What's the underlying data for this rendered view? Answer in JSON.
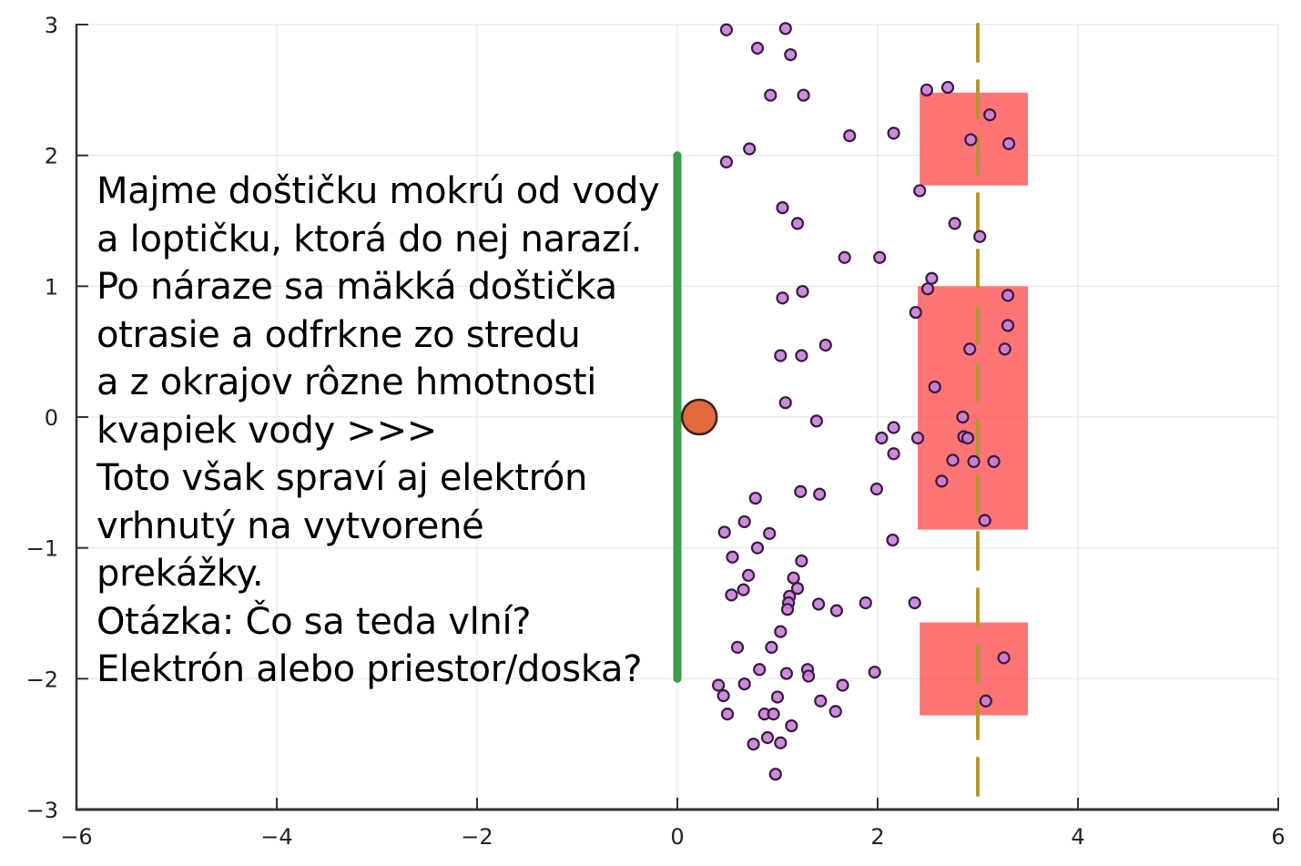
{
  "chart_data": {
    "type": "scatter",
    "title": "",
    "xlabel": "",
    "ylabel": "",
    "xlim": [
      -6,
      6
    ],
    "ylim": [
      -3,
      3
    ],
    "grid": true,
    "x_ticks": [
      -6,
      -4,
      -2,
      0,
      2,
      4,
      6
    ],
    "y_ticks": [
      -3,
      -2,
      -1,
      0,
      1,
      2,
      3
    ],
    "x_tick_labels": [
      "−6",
      "−4",
      "−2",
      "0",
      "2",
      "4",
      "6"
    ],
    "y_tick_labels": [
      "−3",
      "−2",
      "−1",
      "0",
      "1",
      "2",
      "3"
    ],
    "plate": {
      "x": 0,
      "y_from": -2,
      "y_to": 2,
      "color": "#3a9e4a",
      "label": "plate"
    },
    "ball": {
      "x": 0.22,
      "y": 0,
      "color": "#e26a3f",
      "label": "ball"
    },
    "detector_line": {
      "x": 3,
      "style": "dashed",
      "color": "#b8962e"
    },
    "slits": [
      {
        "x0": 2.42,
        "x1": 3.5,
        "y0": 1.77,
        "y1": 2.48
      },
      {
        "x0": 2.4,
        "x1": 3.5,
        "y0": -0.86,
        "y1": 1.0
      },
      {
        "x0": 2.42,
        "x1": 3.5,
        "y0": -2.28,
        "y1": -1.57
      }
    ],
    "slit_color": "#ff4d4d",
    "particles": {
      "color": "#c77fd6",
      "edge": "#3a1a40",
      "points": [
        [
          0.49,
          2.96
        ],
        [
          1.08,
          2.97
        ],
        [
          0.8,
          2.82
        ],
        [
          1.13,
          2.77
        ],
        [
          0.93,
          2.46
        ],
        [
          1.26,
          2.46
        ],
        [
          0.72,
          2.05
        ],
        [
          0.49,
          1.95
        ],
        [
          1.72,
          2.15
        ],
        [
          2.16,
          2.17
        ],
        [
          2.49,
          2.5
        ],
        [
          2.7,
          2.52
        ],
        [
          2.93,
          2.12
        ],
        [
          3.12,
          2.31
        ],
        [
          3.31,
          2.09
        ],
        [
          2.42,
          1.73
        ],
        [
          1.05,
          1.6
        ],
        [
          1.2,
          1.48
        ],
        [
          2.77,
          1.48
        ],
        [
          3.02,
          1.38
        ],
        [
          1.67,
          1.22
        ],
        [
          2.02,
          1.22
        ],
        [
          2.54,
          1.06
        ],
        [
          2.5,
          0.98
        ],
        [
          1.05,
          0.91
        ],
        [
          1.25,
          0.96
        ],
        [
          2.38,
          0.8
        ],
        [
          3.3,
          0.93
        ],
        [
          3.3,
          0.7
        ],
        [
          1.48,
          0.55
        ],
        [
          1.03,
          0.47
        ],
        [
          1.24,
          0.47
        ],
        [
          2.92,
          0.52
        ],
        [
          3.27,
          0.52
        ],
        [
          2.57,
          0.23
        ],
        [
          1.08,
          0.11
        ],
        [
          1.39,
          -0.03
        ],
        [
          2.85,
          0.0
        ],
        [
          2.16,
          -0.08
        ],
        [
          2.04,
          -0.16
        ],
        [
          2.4,
          -0.16
        ],
        [
          2.86,
          -0.15
        ],
        [
          2.9,
          -0.16
        ],
        [
          2.16,
          -0.28
        ],
        [
          2.75,
          -0.33
        ],
        [
          2.96,
          -0.34
        ],
        [
          3.16,
          -0.34
        ],
        [
          2.64,
          -0.49
        ],
        [
          1.23,
          -0.57
        ],
        [
          1.42,
          -0.59
        ],
        [
          1.99,
          -0.55
        ],
        [
          3.07,
          -0.79
        ],
        [
          0.78,
          -0.62
        ],
        [
          0.67,
          -0.8
        ],
        [
          0.47,
          -0.88
        ],
        [
          0.92,
          -0.89
        ],
        [
          0.8,
          -1.0
        ],
        [
          2.15,
          -0.94
        ],
        [
          0.55,
          -1.07
        ],
        [
          1.24,
          -1.1
        ],
        [
          0.71,
          -1.21
        ],
        [
          1.16,
          -1.23
        ],
        [
          0.54,
          -1.36
        ],
        [
          0.66,
          -1.32
        ],
        [
          1.2,
          -1.31
        ],
        [
          1.12,
          -1.37
        ],
        [
          1.11,
          -1.42
        ],
        [
          1.1,
          -1.47
        ],
        [
          1.41,
          -1.43
        ],
        [
          1.59,
          -1.48
        ],
        [
          1.88,
          -1.42
        ],
        [
          2.37,
          -1.42
        ],
        [
          1.03,
          -1.64
        ],
        [
          0.6,
          -1.76
        ],
        [
          0.94,
          -1.76
        ],
        [
          0.82,
          -1.93
        ],
        [
          1.09,
          -1.96
        ],
        [
          1.3,
          -1.93
        ],
        [
          1.31,
          -1.98
        ],
        [
          1.97,
          -1.95
        ],
        [
          3.26,
          -1.84
        ],
        [
          0.41,
          -2.05
        ],
        [
          0.67,
          -2.04
        ],
        [
          1.65,
          -2.05
        ],
        [
          0.46,
          -2.13
        ],
        [
          1.0,
          -2.14
        ],
        [
          1.43,
          -2.17
        ],
        [
          3.08,
          -2.17
        ],
        [
          0.5,
          -2.27
        ],
        [
          0.87,
          -2.27
        ],
        [
          0.96,
          -2.27
        ],
        [
          1.58,
          -2.25
        ],
        [
          1.14,
          -2.36
        ],
        [
          0.9,
          -2.45
        ],
        [
          0.76,
          -2.5
        ],
        [
          1.03,
          -2.49
        ],
        [
          0.98,
          -2.73
        ]
      ]
    }
  },
  "caption": {
    "lines": [
      "Majme doštičku mokrú od vody",
      "a loptičku, ktorá do nej narazí.",
      "Po náraze sa mäkká doštička",
      "otrasie a odfrkne zo stredu",
      "a z okrajov rôzne hmotnosti",
      "kvapiek vody >>>",
      "Toto však spraví aj elektrón",
      "vrhnutý na vytvorené",
      "prekážky.",
      "Otázka: Čo sa teda vlní?",
      "Elektrón alebo priestor/doska?"
    ]
  }
}
